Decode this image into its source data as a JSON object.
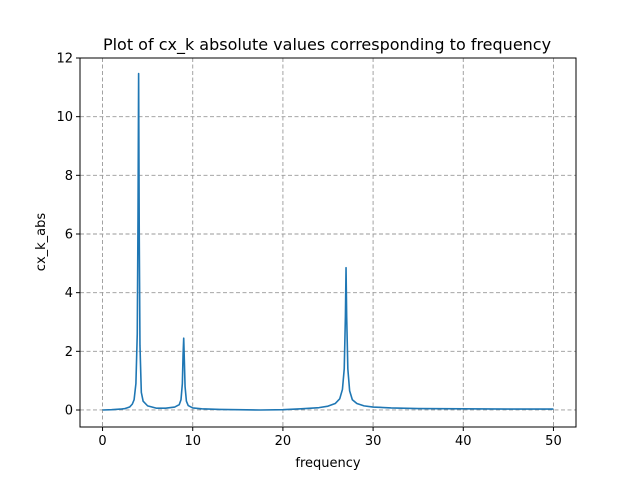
{
  "chart_data": {
    "type": "line",
    "title": "Plot of cx_k absolute values corresponding to frequency",
    "xlabel": "frequency",
    "ylabel": "cx_k_abs",
    "xlim": [
      -2.5,
      52.5
    ],
    "ylim": [
      -0.58,
      12.0
    ],
    "xticks": [
      0,
      10,
      20,
      30,
      40,
      50
    ],
    "yticks": [
      0,
      2,
      4,
      6,
      8,
      10,
      12
    ],
    "grid": true,
    "line_color": "#1f77b4",
    "series": [
      {
        "x": [
          0,
          1,
          2,
          2.5,
          3,
          3.3,
          3.5,
          3.7,
          3.85,
          3.93,
          4.0,
          4.07,
          4.15,
          4.3,
          4.5,
          5,
          6,
          7,
          8,
          8.5,
          8.7,
          8.85,
          8.93,
          9.0,
          9.07,
          9.15,
          9.3,
          9.5,
          10,
          11,
          13,
          15,
          17.5,
          20,
          22,
          24,
          25,
          25.8,
          26.3,
          26.6,
          26.8,
          26.93,
          27.0,
          27.07,
          27.2,
          27.4,
          27.7,
          28.2,
          29,
          30,
          32,
          35,
          40,
          45,
          50
        ],
        "y": [
          0.0,
          0.01,
          0.03,
          0.05,
          0.1,
          0.2,
          0.35,
          0.9,
          2.6,
          6.5,
          11.47,
          6.0,
          2.2,
          0.6,
          0.3,
          0.14,
          0.06,
          0.06,
          0.1,
          0.18,
          0.35,
          0.9,
          1.9,
          2.45,
          1.7,
          0.8,
          0.3,
          0.15,
          0.07,
          0.04,
          0.02,
          0.01,
          0.0,
          0.01,
          0.04,
          0.08,
          0.13,
          0.22,
          0.38,
          0.7,
          1.4,
          3.2,
          4.85,
          3.2,
          1.4,
          0.65,
          0.35,
          0.22,
          0.14,
          0.1,
          0.07,
          0.05,
          0.04,
          0.03,
          0.03
        ]
      }
    ]
  }
}
